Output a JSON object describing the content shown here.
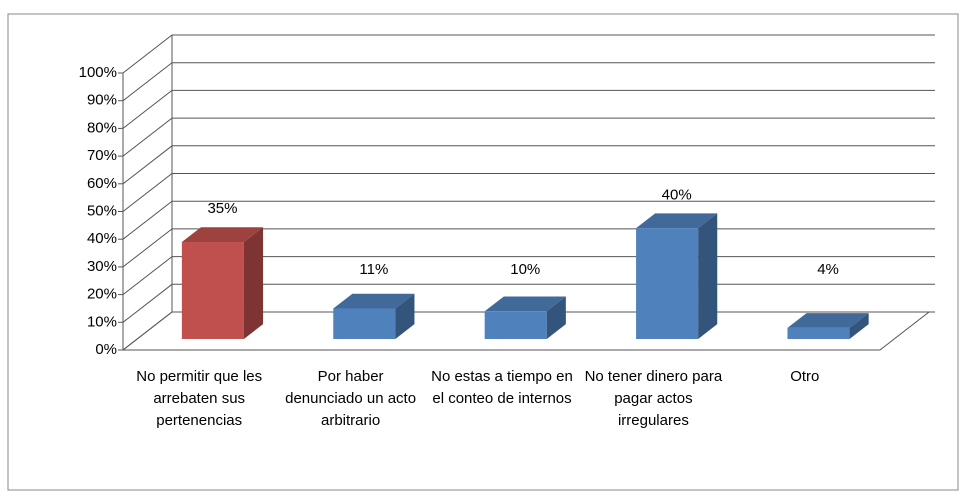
{
  "chart_data": {
    "type": "bar3d",
    "categories": [
      "No permitir que les arrebaten sus pertenencias",
      "Por haber denunciado un acto arbitrario",
      "No estas a tiempo en el conteo de internos",
      "No tener dinero para pagar actos irregulares",
      "Otro"
    ],
    "values": [
      35,
      11,
      10,
      40,
      4
    ],
    "value_labels": [
      "35%",
      "11%",
      "10%",
      "40%",
      "4%"
    ],
    "colors": [
      "#c0504d",
      "#4f81bd",
      "#4f81bd",
      "#4f81bd",
      "#4f81bd"
    ],
    "ylim": [
      0,
      100
    ],
    "yticks": [
      {
        "value": 0,
        "label": "0%"
      },
      {
        "value": 10,
        "label": "10%"
      },
      {
        "value": 20,
        "label": "20%"
      },
      {
        "value": 30,
        "label": "30%"
      },
      {
        "value": 40,
        "label": "40%"
      },
      {
        "value": 50,
        "label": "50%"
      },
      {
        "value": 60,
        "label": "60%"
      },
      {
        "value": 70,
        "label": "70%"
      },
      {
        "value": 80,
        "label": "80%"
      },
      {
        "value": 90,
        "label": "90%"
      },
      {
        "value": 100,
        "label": "100%"
      }
    ],
    "grid": true
  }
}
